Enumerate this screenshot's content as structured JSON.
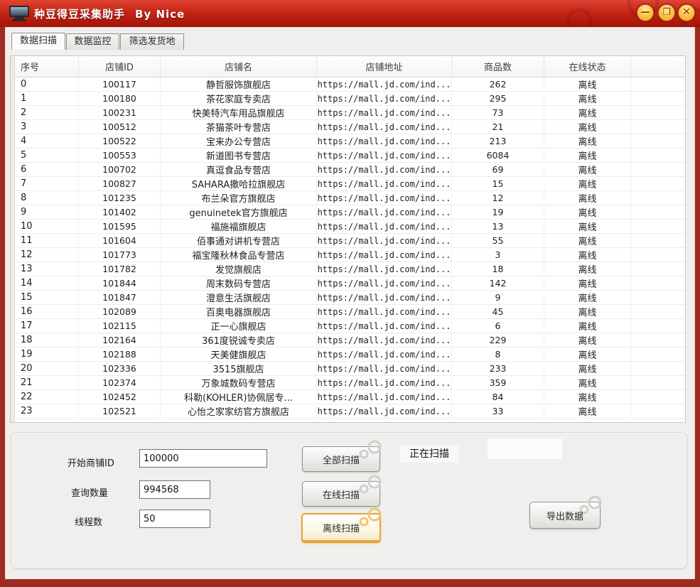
{
  "window": {
    "title": "种豆得豆采集助手",
    "title_by": "By Nice",
    "minimize_glyph": "—",
    "maximize_glyph": "❐",
    "close_glyph": "✕"
  },
  "tabs": [
    {
      "label": "数据扫描",
      "selected": true
    },
    {
      "label": "数据监控",
      "selected": false
    },
    {
      "label": "筛选发货地",
      "selected": false
    }
  ],
  "table": {
    "headers": [
      "序号",
      "店铺ID",
      "店铺名",
      "店铺地址",
      "商品数",
      "在线状态"
    ],
    "rows": [
      [
        "0",
        "100117",
        "静哲服饰旗舰店",
        "https://mall.jd.com/ind...",
        "262",
        "离线"
      ],
      [
        "1",
        "100180",
        "茶花家庭专卖店",
        "https://mall.jd.com/ind...",
        "295",
        "离线"
      ],
      [
        "2",
        "100231",
        "快美特汽车用品旗舰店",
        "https://mall.jd.com/ind...",
        "73",
        "离线"
      ],
      [
        "3",
        "100512",
        "茶猫茶叶专营店",
        "https://mall.jd.com/ind...",
        "21",
        "离线"
      ],
      [
        "4",
        "100522",
        "宝来办公专营店",
        "https://mall.jd.com/ind...",
        "213",
        "离线"
      ],
      [
        "5",
        "100553",
        "新道图书专营店",
        "https://mall.jd.com/ind...",
        "6084",
        "离线"
      ],
      [
        "6",
        "100702",
        "真逗食品专营店",
        "https://mall.jd.com/ind...",
        "69",
        "离线"
      ],
      [
        "7",
        "100827",
        "SAHARA撒哈拉旗舰店",
        "https://mall.jd.com/ind...",
        "15",
        "离线"
      ],
      [
        "8",
        "101235",
        "布兰朵官方旗舰店",
        "https://mall.jd.com/ind...",
        "12",
        "离线"
      ],
      [
        "9",
        "101402",
        "genuinetek官方旗舰店",
        "https://mall.jd.com/ind...",
        "19",
        "离线"
      ],
      [
        "10",
        "101595",
        "福施福旗舰店",
        "https://mall.jd.com/ind...",
        "13",
        "离线"
      ],
      [
        "11",
        "101604",
        "佰事通对讲机专营店",
        "https://mall.jd.com/ind...",
        "55",
        "离线"
      ],
      [
        "12",
        "101773",
        "福宝隆秋林食品专营店",
        "https://mall.jd.com/ind...",
        "3",
        "离线"
      ],
      [
        "13",
        "101782",
        "发觉旗舰店",
        "https://mall.jd.com/ind...",
        "18",
        "离线"
      ],
      [
        "14",
        "101844",
        "周末数码专营店",
        "https://mall.jd.com/ind...",
        "142",
        "离线"
      ],
      [
        "15",
        "101847",
        "澄意生活旗舰店",
        "https://mall.jd.com/ind...",
        "9",
        "离线"
      ],
      [
        "16",
        "102089",
        "百奥电器旗舰店",
        "https://mall.jd.com/ind...",
        "45",
        "离线"
      ],
      [
        "17",
        "102115",
        "正一心旗舰店",
        "https://mall.jd.com/ind...",
        "6",
        "离线"
      ],
      [
        "18",
        "102164",
        "361度锐诚专卖店",
        "https://mall.jd.com/ind...",
        "229",
        "离线"
      ],
      [
        "19",
        "102188",
        "天美健旗舰店",
        "https://mall.jd.com/ind...",
        "8",
        "离线"
      ],
      [
        "20",
        "102336",
        "3515旗舰店",
        "https://mall.jd.com/ind...",
        "233",
        "离线"
      ],
      [
        "21",
        "102374",
        "万象城数码专营店",
        "https://mall.jd.com/ind...",
        "359",
        "离线"
      ],
      [
        "22",
        "102452",
        "科勒(KOHLER)协佩居专...",
        "https://mall.jd.com/ind...",
        "84",
        "离线"
      ],
      [
        "23",
        "102521",
        "心怡之家家纺官方旗舰店",
        "https://mall.jd.com/ind...",
        "33",
        "离线"
      ]
    ]
  },
  "form": {
    "start_id_label": "开始商铺ID",
    "start_id_value": "100000",
    "query_count_label": "查询数量",
    "query_count_value": "994568",
    "thread_label": "线程数",
    "thread_value": "50"
  },
  "buttons": {
    "scan_all": "全部扫描",
    "scan_online": "在线扫描",
    "scan_offline": "离线扫描",
    "export": "导出数据"
  },
  "status": {
    "scanning": "正在扫描"
  },
  "colors": {
    "titlebar_red": "#c52517",
    "window_border_red": "#9e2b20",
    "accent_gold": "#e7a23a",
    "content_bg": "#f0efed"
  }
}
